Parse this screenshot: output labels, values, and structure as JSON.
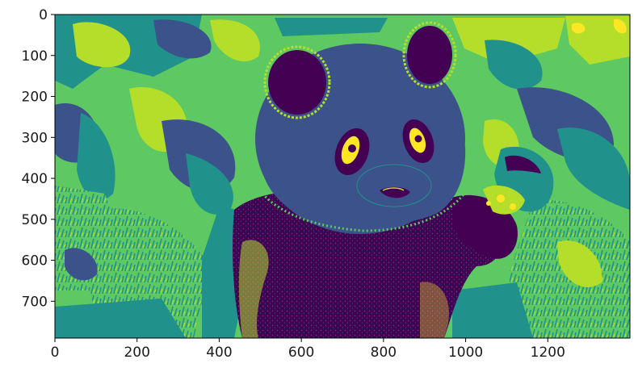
{
  "figure": {
    "kind": "image-plot",
    "colormap": "viridis",
    "palette": [
      "#440154",
      "#3b528b",
      "#21918c",
      "#5ec962",
      "#b5de2b",
      "#fde725"
    ],
    "subject": "panda",
    "x_extent": [
      0,
      1400
    ],
    "y_extent": [
      0,
      790
    ],
    "y_inverted": true
  },
  "axes": {
    "x_ticks": [
      "0",
      "200",
      "400",
      "600",
      "800",
      "1000",
      "1200"
    ],
    "x_tick_values": [
      0,
      200,
      400,
      600,
      800,
      1000,
      1200
    ],
    "y_ticks": [
      "0",
      "100",
      "200",
      "300",
      "400",
      "500",
      "600",
      "700"
    ],
    "y_tick_values": [
      0,
      100,
      200,
      300,
      400,
      500,
      600,
      700
    ]
  }
}
